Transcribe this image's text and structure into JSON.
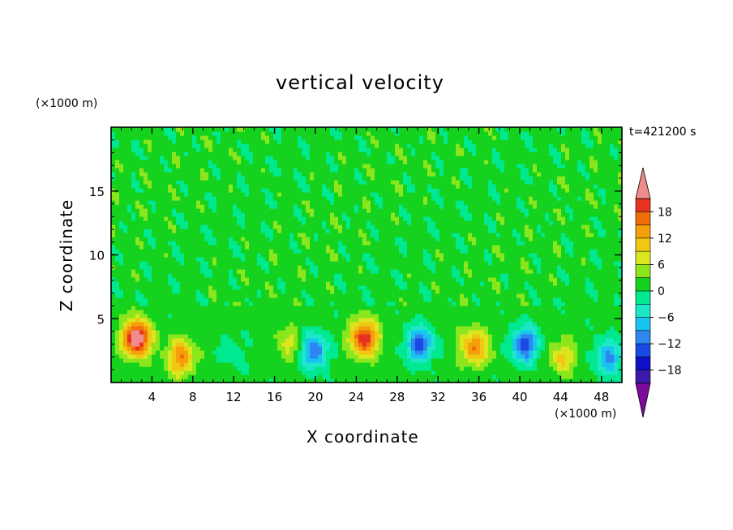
{
  "chart_data": {
    "type": "heatmap",
    "title": "vertical velocity",
    "xlabel": "X coordinate",
    "ylabel": "Z coordinate",
    "x_unit": "(×1000 m)",
    "y_unit": "(×1000 m)",
    "time_label": "t=421200 s",
    "xlim": [
      0,
      50
    ],
    "ylim": [
      0,
      20
    ],
    "xticks": [
      4,
      8,
      12,
      16,
      20,
      24,
      28,
      32,
      36,
      40,
      44,
      48
    ],
    "yticks": [
      5,
      10,
      15
    ],
    "colorbar": {
      "levels": [
        -21,
        -18,
        -15,
        -12,
        -9,
        -6,
        -3,
        0,
        3,
        6,
        9,
        12,
        15,
        18,
        21
      ],
      "tick_labels": [
        18,
        12,
        6,
        0,
        -6,
        -12,
        -18
      ],
      "colors": [
        "#7d0a9c",
        "#3a1aa8",
        "#1010c8",
        "#1a4ae6",
        "#2f86f0",
        "#19c4f0",
        "#1ce8c8",
        "#00e890",
        "#14d21e",
        "#8ce61e",
        "#dce61e",
        "#f0c814",
        "#f5a00a",
        "#f06e0a",
        "#e6321e",
        "#f08c8c"
      ],
      "extend": "both"
    },
    "features": [
      {
        "x": 2.5,
        "z": 3.5,
        "w": 25,
        "label": "updraft"
      },
      {
        "x": 6.8,
        "z": 2.0,
        "w": 14,
        "label": "updraft"
      },
      {
        "x": 12.0,
        "z": 2.5,
        "w": -3,
        "label": "downdraft"
      },
      {
        "x": 17.5,
        "z": 3.0,
        "w": 6,
        "label": "updraft"
      },
      {
        "x": 19.8,
        "z": 2.5,
        "w": -14,
        "label": "downdraft"
      },
      {
        "x": 24.8,
        "z": 3.5,
        "w": 20,
        "label": "updraft"
      },
      {
        "x": 30.2,
        "z": 3.0,
        "w": -15,
        "label": "downdraft"
      },
      {
        "x": 35.6,
        "z": 2.8,
        "w": 14,
        "label": "updraft"
      },
      {
        "x": 40.5,
        "z": 3.0,
        "w": -15,
        "label": "downdraft"
      },
      {
        "x": 44.2,
        "z": 2.0,
        "w": 8,
        "label": "updraft"
      },
      {
        "x": 48.7,
        "z": 2.0,
        "w": -11,
        "label": "downdraft"
      }
    ]
  }
}
